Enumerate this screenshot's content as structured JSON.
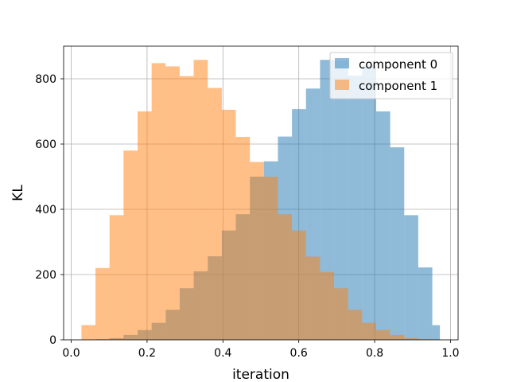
{
  "chart_data": {
    "type": "bar",
    "title": "",
    "xlabel": "iteration",
    "ylabel": "KL",
    "xlim": [
      -0.02,
      1.02
    ],
    "ylim": [
      0,
      900
    ],
    "xticks": [
      0.0,
      0.2,
      0.4,
      0.6,
      0.8,
      1.0
    ],
    "xtick_labels": [
      "0.0",
      "0.2",
      "0.4",
      "0.6",
      "0.8",
      "1.0"
    ],
    "yticks": [
      0,
      200,
      400,
      600,
      800
    ],
    "ytick_labels": [
      "0",
      "200",
      "400",
      "600",
      "800"
    ],
    "grid": true,
    "legend_position": "top-right",
    "series": [
      {
        "name": "component 0",
        "color": "#1f77b4",
        "bin_edges": [
          0.027,
          0.064,
          0.101,
          0.138,
          0.175,
          0.212,
          0.249,
          0.286,
          0.323,
          0.36,
          0.397,
          0.434,
          0.471,
          0.508,
          0.545,
          0.582,
          0.619,
          0.656,
          0.693,
          0.73,
          0.767,
          0.804,
          0.841,
          0.878,
          0.915,
          0.952,
          0.972
        ],
        "values": [
          0,
          2,
          5,
          15,
          30,
          52,
          92,
          158,
          210,
          256,
          335,
          385,
          500,
          547,
          623,
          707,
          770,
          858,
          855,
          810,
          840,
          700,
          590,
          382,
          222,
          45
        ]
      },
      {
        "name": "component 1",
        "color": "#ff7f0e",
        "bin_edges": [
          0.027,
          0.064,
          0.101,
          0.138,
          0.175,
          0.212,
          0.249,
          0.286,
          0.323,
          0.36,
          0.397,
          0.434,
          0.471,
          0.508,
          0.545,
          0.582,
          0.619,
          0.656,
          0.693,
          0.73,
          0.767,
          0.804,
          0.841,
          0.878,
          0.915,
          0.952,
          0.972
        ],
        "values": [
          45,
          220,
          382,
          580,
          700,
          848,
          838,
          808,
          858,
          772,
          705,
          622,
          545,
          500,
          385,
          335,
          255,
          208,
          158,
          92,
          52,
          30,
          15,
          5,
          2,
          0
        ]
      }
    ]
  }
}
